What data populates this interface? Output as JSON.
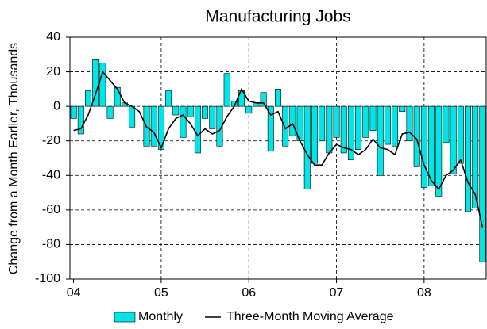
{
  "chart_data": {
    "type": "bar",
    "title": "Manufacturing Jobs",
    "y_label": "Change from a  Month Earlier, Thousands",
    "categories": [
      "04",
      null,
      null,
      null,
      null,
      null,
      null,
      null,
      null,
      null,
      null,
      null,
      "05",
      null,
      null,
      null,
      null,
      null,
      null,
      null,
      null,
      null,
      null,
      null,
      "06",
      null,
      null,
      null,
      null,
      null,
      null,
      null,
      null,
      null,
      null,
      null,
      "07",
      null,
      null,
      null,
      null,
      null,
      null,
      null,
      null,
      null,
      null,
      null,
      "08",
      null,
      null,
      null,
      null,
      null,
      null,
      null,
      null
    ],
    "series": [
      {
        "name": "Monthly",
        "type": "bar",
        "color": "#00e6e6",
        "values": [
          -7,
          -16,
          9,
          27,
          25,
          -7,
          11,
          2,
          -12,
          0,
          -23,
          -23,
          -25,
          9,
          -5,
          -18,
          -6,
          -27,
          -7,
          -13,
          -23,
          19,
          3,
          9,
          -4,
          2,
          8,
          -26,
          10,
          -23,
          -17,
          -20,
          -48,
          -33,
          -20,
          -27,
          -18,
          -27,
          -31,
          -25,
          -18,
          -14,
          -40,
          -22,
          -23,
          -3,
          -20,
          -35,
          -47,
          -46,
          -52,
          -21,
          -39,
          -33,
          -61,
          -59,
          -90
        ]
      },
      {
        "name": "Three-Month Moving Average",
        "type": "line",
        "color": "#000000",
        "values": [
          -14,
          -13,
          -5,
          7,
          20,
          15,
          10,
          2,
          0,
          -3,
          -12,
          -15,
          -24,
          -13,
          -7,
          -5,
          -10,
          -17,
          -13,
          -16,
          -14,
          -6,
          0,
          10,
          3,
          2,
          2,
          -5,
          -3,
          -13,
          -10,
          -20,
          -28,
          -34,
          -34,
          -27,
          -22,
          -24,
          -25,
          -28,
          -25,
          -19,
          -24,
          -25,
          -28,
          -16,
          -15,
          -19,
          -34,
          -43,
          -48,
          -40,
          -37,
          -31,
          -44,
          -51,
          -70
        ]
      }
    ],
    "ylim": [
      -100,
      40
    ],
    "yticks": [
      -100,
      -80,
      -60,
      -40,
      -20,
      0,
      20,
      40
    ],
    "grid": true
  }
}
